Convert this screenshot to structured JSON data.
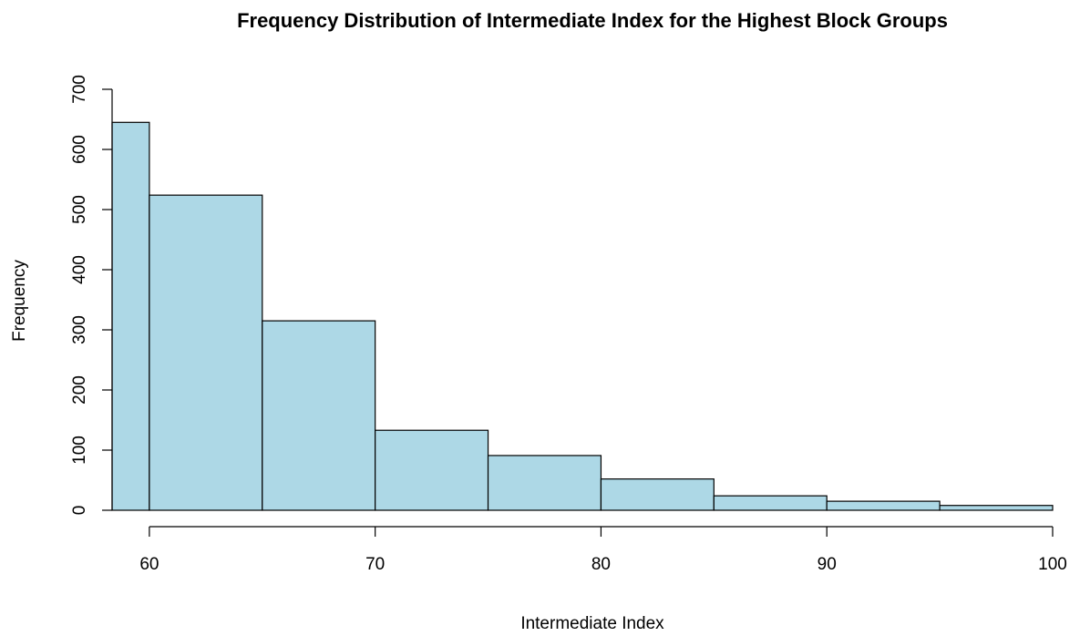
{
  "chart_data": {
    "type": "histogram",
    "title": "Frequency Distribution of Intermediate Index for the Highest Block Groups",
    "x_label": "Intermediate Index",
    "y_label": "Frequency",
    "bins": [
      58.35,
      60,
      65,
      70,
      75,
      80,
      85,
      90,
      95,
      100
    ],
    "values": [
      645,
      524,
      315,
      133,
      91,
      52,
      24,
      15,
      8
    ],
    "color": "#add8e6",
    "xlim": [
      58.35,
      100
    ],
    "xticks": [
      60,
      70,
      80,
      90,
      100
    ],
    "ylim": [
      0,
      700
    ],
    "yticks": [
      0,
      100,
      200,
      300,
      400,
      500,
      600,
      700
    ]
  }
}
